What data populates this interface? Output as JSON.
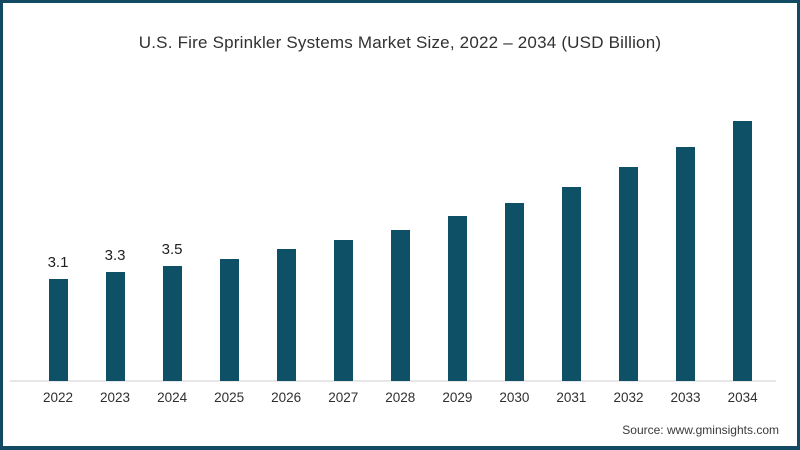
{
  "page": {
    "background": "#ffffff",
    "border_color": "#134a63"
  },
  "chart_data": {
    "type": "bar",
    "title": "U.S. Fire Sprinkler Systems Market Size, 2022 – 2034 (USD Billion)",
    "xlabel": "",
    "ylabel": "",
    "unit": "USD Billion",
    "categories": [
      "2022",
      "2023",
      "2024",
      "2025",
      "2026",
      "2027",
      "2028",
      "2029",
      "2030",
      "2031",
      "2032",
      "2033",
      "2034"
    ],
    "values": [
      3.1,
      3.3,
      3.5,
      3.7,
      4.0,
      4.3,
      4.6,
      5.0,
      5.4,
      5.9,
      6.5,
      7.1,
      7.9
    ],
    "data_labels": [
      "3.1",
      "3.3",
      "3.5",
      "",
      "",
      "",
      "",
      "",
      "",
      "",
      "",
      "",
      ""
    ],
    "ylim": [
      0,
      8.5
    ],
    "grid": false,
    "legend": false,
    "bar_color": "#0e5066",
    "axis_line_color": "#e7e7e7",
    "label_color": "#1f1f1f",
    "tick_color": "#2f2f2f"
  },
  "footer": {
    "source": "Source: www.gminsights.com"
  }
}
